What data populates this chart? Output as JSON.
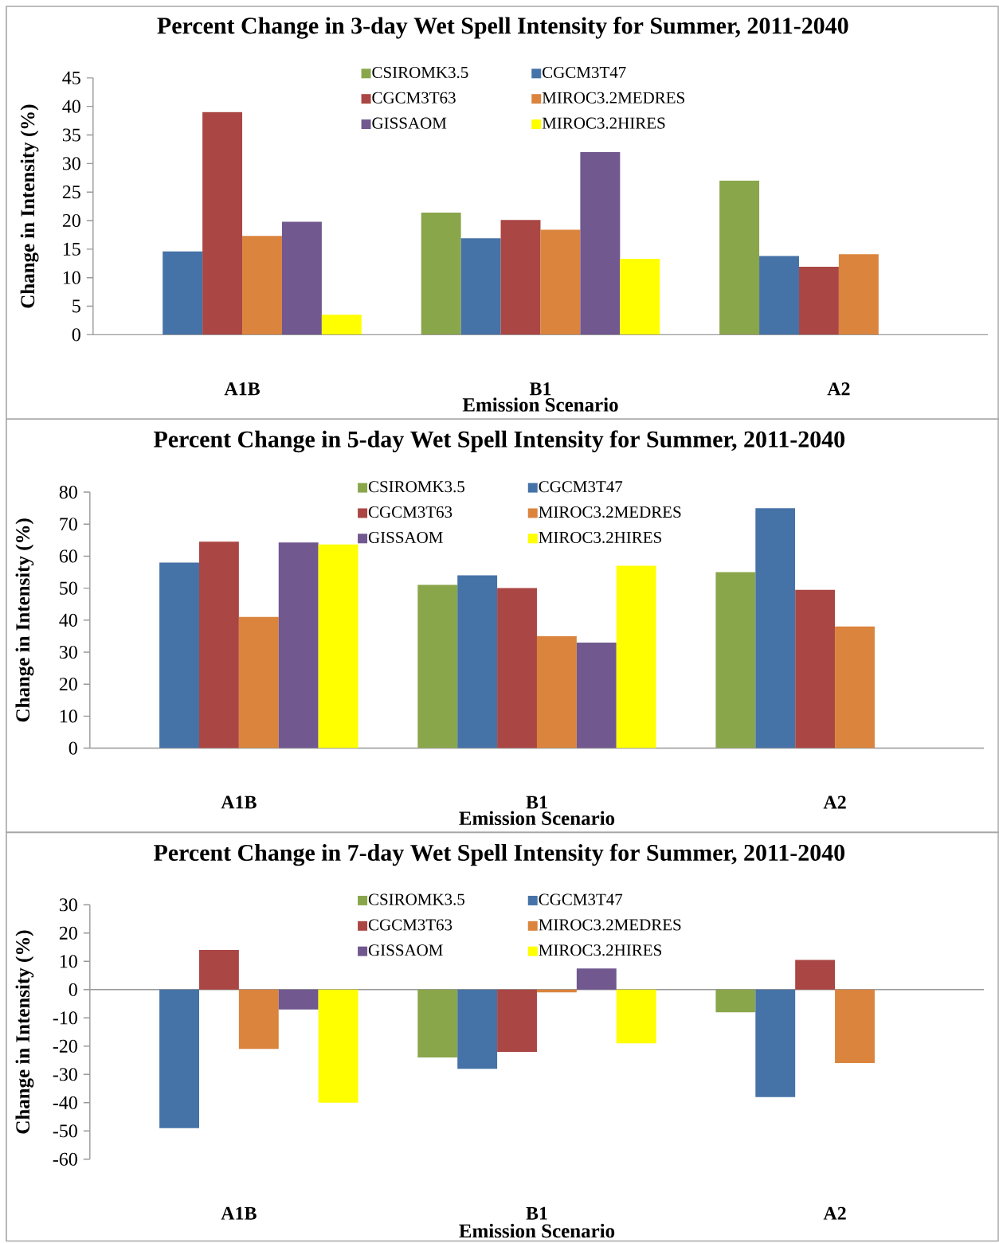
{
  "chart_data": [
    {
      "type": "bar",
      "title": "Percent Change in 3-day Wet Spell Intensity for Summer, 2011-2040",
      "xlabel": "Emission Scenario",
      "ylabel": "Change in Intensity (%)",
      "categories": [
        "A1B",
        "B1",
        "A2"
      ],
      "ylim": [
        0,
        45
      ],
      "yticks": [
        0,
        5,
        10,
        15,
        20,
        25,
        30,
        35,
        40,
        45
      ],
      "legend": "top",
      "series": [
        {
          "name": "CSIROMK3.5",
          "color": "#8aa64b",
          "values": [
            null,
            21.4,
            27
          ]
        },
        {
          "name": "CGCM3T47",
          "color": "#4572a7",
          "values": [
            14.6,
            16.9,
            13.8
          ]
        },
        {
          "name": "CGCM3T63",
          "color": "#aa4643",
          "values": [
            39,
            20.1,
            11.9
          ]
        },
        {
          "name": "MIROC3.2MEDRES",
          "color": "#db843d",
          "values": [
            17.3,
            18.4,
            14.1
          ]
        },
        {
          "name": "GISSAOM",
          "color": "#71588f",
          "values": [
            19.8,
            32,
            null
          ]
        },
        {
          "name": "MIROC3.2HIRES",
          "color": "#ffff00",
          "values": [
            3.5,
            13.3,
            null
          ]
        }
      ]
    },
    {
      "type": "bar",
      "title": "Percent Change in 5-day Wet Spell Intensity for Summer, 2011-2040",
      "xlabel": "Emission Scenario",
      "ylabel": "Change in Intensity (%)",
      "categories": [
        "A1B",
        "B1",
        "A2"
      ],
      "ylim": [
        0,
        80
      ],
      "yticks": [
        0,
        10,
        20,
        30,
        40,
        50,
        60,
        70,
        80
      ],
      "legend": "top",
      "series": [
        {
          "name": "CSIROMK3.5",
          "color": "#8aa64b",
          "values": [
            null,
            51,
            55
          ]
        },
        {
          "name": "CGCM3T47",
          "color": "#4572a7",
          "values": [
            58,
            54,
            75
          ]
        },
        {
          "name": "CGCM3T63",
          "color": "#aa4643",
          "values": [
            64.5,
            50,
            49.5
          ]
        },
        {
          "name": "MIROC3.2MEDRES",
          "color": "#db843d",
          "values": [
            41,
            35,
            38
          ]
        },
        {
          "name": "GISSAOM",
          "color": "#71588f",
          "values": [
            64.3,
            33,
            null
          ]
        },
        {
          "name": "MIROC3.2HIRES",
          "color": "#ffff00",
          "values": [
            63.7,
            57,
            null
          ]
        }
      ]
    },
    {
      "type": "bar",
      "title": "Percent Change in 7-day Wet Spell Intensity for Summer, 2011-2040",
      "xlabel": "Emission Scenario",
      "ylabel": "Change in Intensity (%)",
      "categories": [
        "A1B",
        "B1",
        "A2"
      ],
      "ylim": [
        -60,
        30
      ],
      "yticks": [
        -60,
        -50,
        -40,
        -30,
        -20,
        -10,
        0,
        10,
        20,
        30
      ],
      "legend": "top",
      "series": [
        {
          "name": "CSIROMK3.5",
          "color": "#8aa64b",
          "values": [
            null,
            -24,
            -8
          ]
        },
        {
          "name": "CGCM3T47",
          "color": "#4572a7",
          "values": [
            -49,
            -28,
            -38
          ]
        },
        {
          "name": "CGCM3T63",
          "color": "#aa4643",
          "values": [
            14,
            -22,
            10.5
          ]
        },
        {
          "name": "MIROC3.2MEDRES",
          "color": "#db843d",
          "values": [
            -21,
            -1,
            -26
          ]
        },
        {
          "name": "GISSAOM",
          "color": "#71588f",
          "values": [
            -7,
            7.5,
            null
          ]
        },
        {
          "name": "MIROC3.2HIRES",
          "color": "#ffff00",
          "values": [
            -40,
            -19,
            null
          ]
        }
      ]
    }
  ]
}
